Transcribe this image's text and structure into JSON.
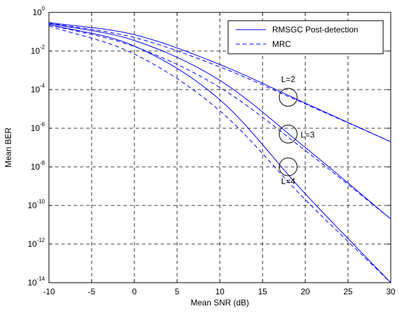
{
  "chart_data": {
    "type": "line",
    "xlabel": "Mean SNR (dB)",
    "ylabel": "Mean BER",
    "xlim": [
      -10,
      30
    ],
    "ylim": [
      1e-14,
      1
    ],
    "yscale": "log",
    "grid": true,
    "grid_style": "dashed",
    "legend_position": "top-right",
    "x_ticks": [
      "-10",
      "-5",
      "0",
      "5",
      "10",
      "15",
      "20",
      "25",
      "30"
    ],
    "y_ticks": [
      {
        "base": "10",
        "exp": "0"
      },
      {
        "base": "10",
        "exp": "-2"
      },
      {
        "base": "10",
        "exp": "-4"
      },
      {
        "base": "10",
        "exp": "-6"
      },
      {
        "base": "10",
        "exp": "-8"
      },
      {
        "base": "10",
        "exp": "-10"
      },
      {
        "base": "10",
        "exp": "-12"
      },
      {
        "base": "10",
        "exp": "-14"
      }
    ],
    "legend": [
      {
        "label": "RMSGC Post-detection",
        "style": "solid",
        "color": "#0000ff"
      },
      {
        "label": "MRC",
        "style": "dashed",
        "color": "#0000ff"
      }
    ],
    "x": [
      -10,
      0,
      10,
      20,
      30
    ],
    "series": [
      {
        "legend": "RMSGC Post-detection",
        "group": "L=2",
        "style": "solid",
        "y": [
          0.3,
          0.07,
          0.002,
          2e-05,
          2e-07
        ]
      },
      {
        "legend": "RMSGC Post-detection",
        "group": "L=3",
        "style": "solid",
        "y": [
          0.27,
          0.035,
          0.0003,
          1e-07,
          2e-11
        ]
      },
      {
        "legend": "RMSGC Post-detection",
        "group": "L=4",
        "style": "solid",
        "y": [
          0.24,
          0.018,
          3e-05,
          4e-10,
          1e-14
        ]
      },
      {
        "legend": "MRC",
        "group": "L=2",
        "style": "dashed",
        "y": [
          0.28,
          0.05,
          0.0015,
          1.8e-05,
          2e-07
        ]
      },
      {
        "legend": "MRC",
        "group": "L=3",
        "style": "dashed",
        "y": [
          0.23,
          0.017,
          0.00013,
          7e-08,
          2e-11
        ]
      },
      {
        "legend": "MRC",
        "group": "L=4",
        "style": "dashed",
        "y": [
          0.2,
          0.007,
          8e-06,
          2e-10,
          1e-14
        ]
      }
    ],
    "annotations": [
      {
        "label": "L=2",
        "x": 18,
        "y": 4e-05
      },
      {
        "label": "L=3",
        "x": 18,
        "y": 5e-07
      },
      {
        "label": "L=4",
        "x": 18,
        "y": 1e-08
      }
    ],
    "colors": {
      "series": "#0000ff",
      "grid": "#000000",
      "axes": "#000000"
    }
  }
}
